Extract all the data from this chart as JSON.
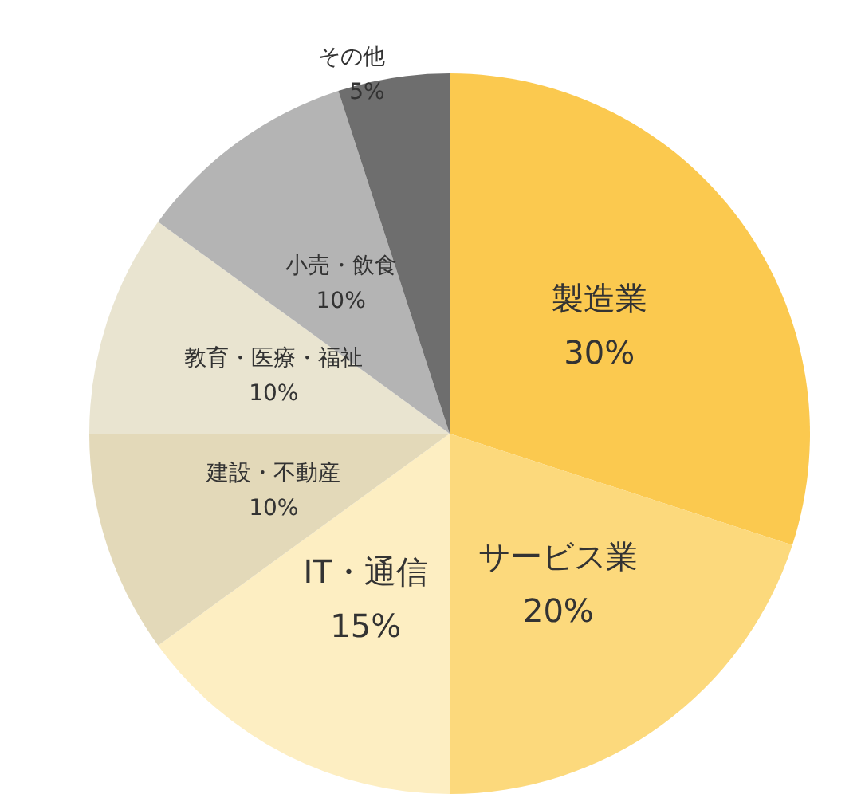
{
  "chart_data": {
    "type": "pie",
    "categories": [
      "製造業",
      "サービス業",
      "IT・通信",
      "建設・不動産",
      "教育・医療・福祉",
      "小売・飲食",
      "その他"
    ],
    "values": [
      30,
      20,
      15,
      10,
      10,
      10,
      5
    ],
    "value_labels": [
      "30%",
      "20%",
      "15%",
      "10%",
      "10%",
      "10%",
      "5%"
    ],
    "colors": [
      "#fbc94f",
      "#fcd97c",
      "#fdeec2",
      "#e3d9b9",
      "#e9e4d0",
      "#b4b4b4",
      "#6e6e6e"
    ],
    "legend": false
  }
}
